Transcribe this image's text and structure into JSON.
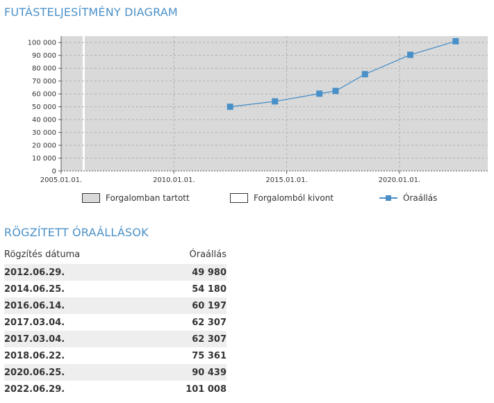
{
  "chart_section": {
    "title": "FUTÁSTELJESÍTMÉNY DIAGRAM"
  },
  "table_section": {
    "title": "RÖGZÍTETT ÓRAÁLLÁSOK",
    "col_date": "Rögzítés dátuma",
    "col_value": "Óraállás",
    "rows": [
      {
        "date": "2012.06.29.",
        "value": "49 980"
      },
      {
        "date": "2014.06.25.",
        "value": "54 180"
      },
      {
        "date": "2016.06.14.",
        "value": "60 197"
      },
      {
        "date": "2017.03.04.",
        "value": "62 307"
      },
      {
        "date": "2017.03.04.",
        "value": "62 307"
      },
      {
        "date": "2018.06.22.",
        "value": "75 361"
      },
      {
        "date": "2020.06.25.",
        "value": "90 439"
      },
      {
        "date": "2022.06.29.",
        "value": "101 008"
      }
    ]
  },
  "colors": {
    "accent": "#4a90c8",
    "plot_bg": "#d9d9d9",
    "in_service": "#d9d9d9",
    "withdrawn": "#ffffff"
  },
  "chart_data": {
    "type": "line",
    "title": "FUTÁSTELJESÍTMÉNY DIAGRAM",
    "xlabel": "",
    "ylabel": "",
    "xlim": [
      "2005.01.01.",
      "2023.12.01."
    ],
    "ylim": [
      0,
      105000
    ],
    "x_ticks": [
      "2005.01.01.",
      "2010.01.01.",
      "2015.01.01.",
      "2020.01.01."
    ],
    "y_ticks": [
      0,
      10000,
      20000,
      30000,
      40000,
      50000,
      60000,
      70000,
      80000,
      90000,
      100000
    ],
    "y_tick_labels": [
      "0",
      "10 000",
      "20 000",
      "30 000",
      "40 000",
      "50 000",
      "60 000",
      "70 000",
      "80 000",
      "90 000",
      "100 000"
    ],
    "grid": true,
    "legend_position": "bottom",
    "bands": [
      {
        "name": "Forgalomban tartott",
        "from": "2005.01.01.",
        "to": "2006.01.01."
      }
    ],
    "withdrawn_marks": [
      "2006.01.01."
    ],
    "series": [
      {
        "name": "Óraállás",
        "x": [
          "2012.06.29.",
          "2014.06.25.",
          "2016.06.14.",
          "2017.03.04.",
          "2018.06.22.",
          "2020.06.25.",
          "2022.06.29."
        ],
        "values": [
          49980,
          54180,
          60197,
          62307,
          75361,
          90439,
          101008
        ]
      }
    ],
    "legend": [
      "Forgalomban tartott",
      "Forgalomból kivont",
      "Óraállás"
    ]
  }
}
